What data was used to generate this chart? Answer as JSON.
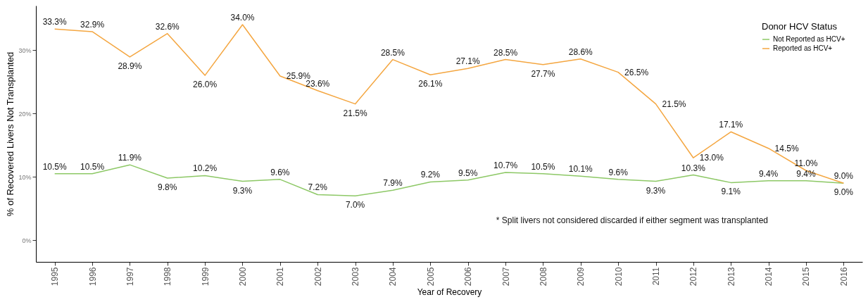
{
  "chart_data": {
    "type": "line",
    "xlabel": "Year of Recovery",
    "ylabel": "% of Recovered Livers Not Transplanted",
    "legend_title": "Donor HCV Status",
    "legend": "top right",
    "grid": false,
    "marker": "none",
    "line_style": "solid",
    "categories": [
      "1995",
      "1996",
      "1997",
      "1998",
      "1999",
      "2000",
      "2001",
      "2002",
      "2003",
      "2004",
      "2005",
      "2006",
      "2007",
      "2008",
      "2009",
      "2010",
      "2011",
      "2012",
      "2013",
      "2014",
      "2015",
      "2016"
    ],
    "ylim": [
      -3.4,
      37
    ],
    "yticks": [
      {
        "value": 0,
        "label": "0%"
      },
      {
        "value": 10,
        "label": "10%"
      },
      {
        "value": 20,
        "label": "20%"
      },
      {
        "value": 30,
        "label": "30%"
      }
    ],
    "series": [
      {
        "name": "Not Reported as HCV+",
        "color": "#8dc866",
        "values": [
          10.5,
          10.5,
          11.9,
          9.8,
          10.2,
          9.3,
          9.6,
          7.2,
          7.0,
          7.9,
          9.2,
          9.5,
          10.7,
          10.5,
          10.1,
          9.6,
          9.3,
          10.3,
          9.1,
          9.4,
          9.4,
          9.0
        ],
        "value_labels": [
          "10.5%",
          "10.5%",
          "11.9%",
          "9.8%",
          "10.2%",
          "9.3%",
          "9.6%",
          "7.2%",
          "7.0%",
          "7.9%",
          "9.2%",
          "9.5%",
          "10.7%",
          "10.5%",
          "10.1%",
          "9.6%",
          "9.3%",
          "10.3%",
          "9.1%",
          "9.4%",
          "9.4%",
          "9.0%"
        ]
      },
      {
        "name": "Reported as HCV+",
        "color": "#f4a640",
        "values": [
          33.3,
          32.9,
          28.9,
          32.6,
          26.0,
          34.0,
          25.9,
          23.6,
          21.5,
          28.5,
          26.1,
          27.1,
          28.5,
          27.7,
          28.6,
          26.5,
          21.5,
          13.0,
          17.1,
          14.5,
          11.0,
          9.0
        ],
        "value_labels": [
          "33.3%",
          "32.9%",
          "28.9%",
          "32.6%",
          "26.0%",
          "34.0%",
          "25.9%",
          "23.6%",
          "21.5%",
          "28.5%",
          "26.1%",
          "27.1%",
          "28.5%",
          "27.7%",
          "28.6%",
          "26.5%",
          "21.5%",
          "13.0%",
          "17.1%",
          "14.5%",
          "11.0%",
          "9.0%"
        ]
      }
    ],
    "annotations": [
      "* Split livers not considered discarded if either segment was transplanted"
    ]
  }
}
